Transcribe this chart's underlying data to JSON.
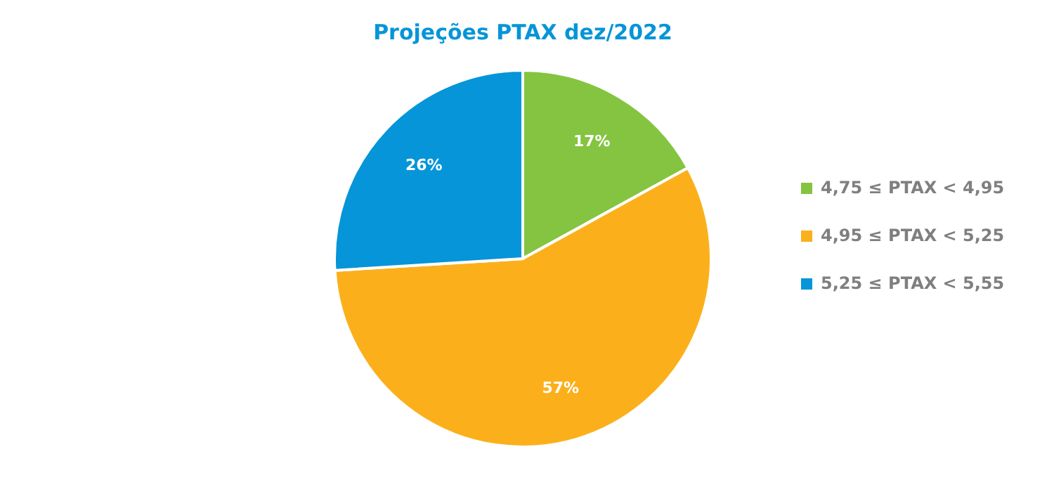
{
  "chart_data": {
    "type": "pie",
    "title": "Projeções PTAX dez/2022",
    "categories": [
      "4,75 ≤ PTAX < 4,95",
      "4,95 ≤ PTAX < 5,25",
      "5,25 ≤ PTAX < 5,55"
    ],
    "values": [
      17,
      57,
      26
    ],
    "colors": [
      "#84c441",
      "#fbb01b",
      "#0595d8"
    ],
    "value_labels": [
      "17%",
      "57%",
      "26%"
    ],
    "legend": "right"
  }
}
